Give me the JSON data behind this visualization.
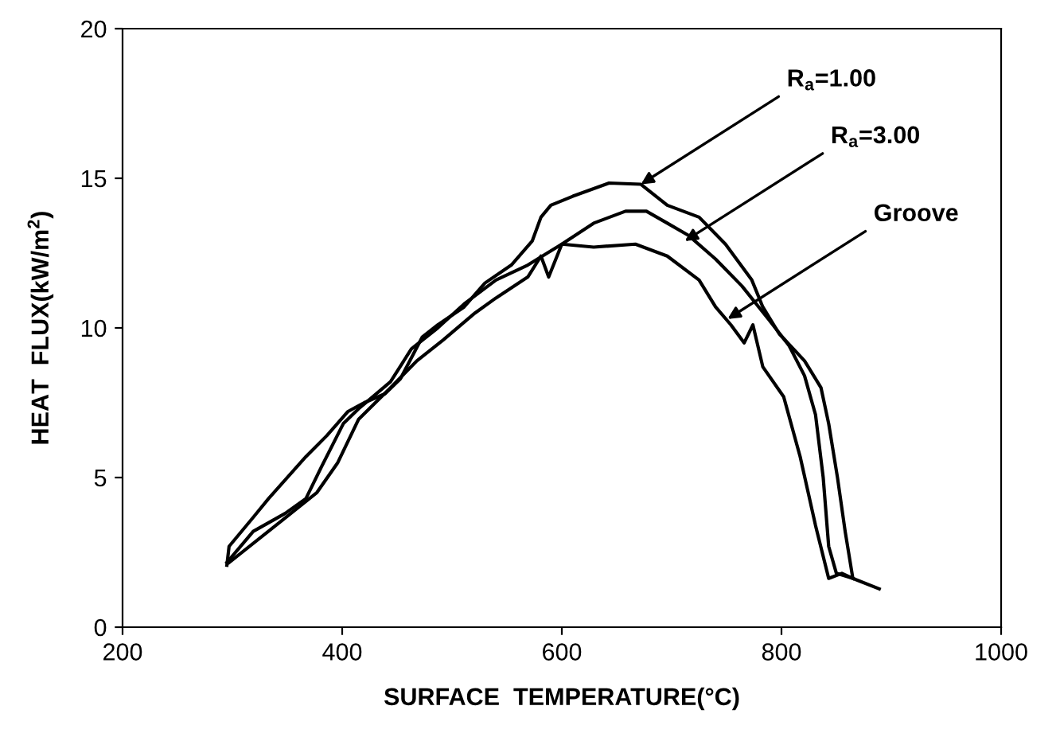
{
  "chart_data": {
    "type": "line",
    "xlabel": "SURFACE  TEMPERATURE(°C)",
    "ylabel": "HEAT  FLUX(kW/m$^{2}$)",
    "xlim": [
      200,
      1000
    ],
    "xticks": [
      200,
      400,
      600,
      800,
      1000
    ],
    "ylim": [
      0,
      20
    ],
    "yticks": [
      0,
      5,
      10,
      15,
      20
    ],
    "grid": false,
    "legend": false,
    "marker": "none",
    "line_style": "solid",
    "series": [
      {
        "color": "#000000",
        "x": [
          295,
          297,
          319,
          333,
          367,
          386,
          405,
          420,
          439,
          453,
          473,
          487,
          511,
          530,
          554,
          573,
          581,
          590,
          610,
          643,
          672,
          696,
          725,
          749,
          773,
          783,
          798,
          821,
          836,
          843,
          851,
          858,
          865,
          889
        ],
        "values": [
          2.07,
          2.7,
          3.67,
          4.3,
          5.7,
          6.4,
          7.2,
          7.5,
          7.8,
          8.3,
          9.7,
          10.1,
          10.7,
          11.5,
          12.1,
          12.9,
          13.7,
          14.1,
          14.4,
          14.84,
          14.8,
          14.1,
          13.7,
          12.8,
          11.6,
          10.7,
          9.8,
          8.9,
          8.0,
          6.8,
          5.0,
          3.2,
          1.63,
          1.28
        ]
      },
      {
        "color": "#000000",
        "x": [
          295,
          319,
          348,
          367,
          381,
          401,
          415,
          444,
          463,
          487,
          511,
          540,
          569,
          600,
          629,
          658,
          677,
          696,
          715,
          740,
          764,
          788,
          807,
          821,
          831,
          838,
          843,
          850,
          865
        ],
        "values": [
          2.16,
          3.2,
          3.8,
          4.3,
          5.35,
          6.8,
          7.3,
          8.2,
          9.3,
          10.0,
          10.8,
          11.6,
          12.1,
          12.8,
          13.5,
          13.9,
          13.9,
          13.5,
          13.1,
          12.3,
          11.4,
          10.3,
          9.4,
          8.4,
          7.1,
          5.0,
          2.7,
          1.8,
          1.63
        ]
      },
      {
        "color": "#000000",
        "x": [
          297,
          343,
          377,
          396,
          415,
          444,
          468,
          492,
          521,
          540,
          569,
          581,
          588,
          600,
          629,
          667,
          696,
          725,
          740,
          754,
          766,
          774,
          783,
          802,
          817,
          831,
          843,
          855,
          865
        ],
        "values": [
          2.16,
          3.5,
          4.5,
          5.5,
          6.95,
          8.0,
          8.9,
          9.6,
          10.5,
          11.0,
          11.7,
          12.4,
          11.7,
          12.8,
          12.7,
          12.8,
          12.4,
          11.6,
          10.7,
          10.1,
          9.5,
          10.1,
          8.7,
          7.7,
          5.7,
          3.4,
          1.63,
          1.8,
          1.63
        ]
      }
    ],
    "annotations": [
      {
        "text": "R$_{a}$=1.00",
        "x": 672,
        "y": 14.8
      },
      {
        "text": "R$_{a}$=3.00",
        "x": 712,
        "y": 12.9
      },
      {
        "text": "Groove",
        "x": 751,
        "y": 10.3
      }
    ]
  }
}
